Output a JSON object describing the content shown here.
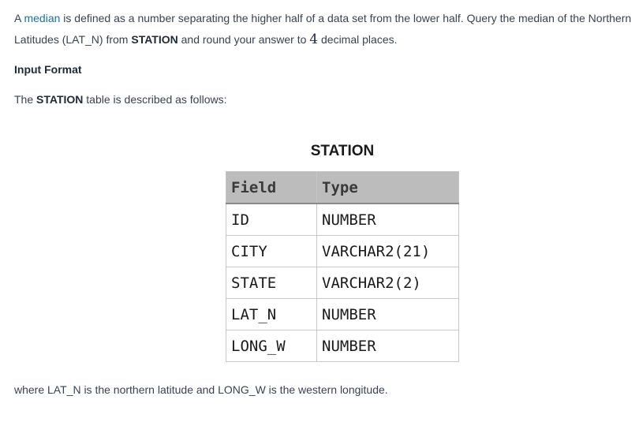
{
  "intro": {
    "prefix": "A ",
    "link_text": "median",
    "text_a": " is defined as a number separating the higher half of a data set from the lower half. Query the median of the Northern Latitudes (LAT_N) from ",
    "table_name": "STATION",
    "text_b": " and round your answer to ",
    "decimal_count": "4",
    "text_c": " decimal places."
  },
  "input_format": {
    "heading": "Input Format",
    "desc_prefix": "The ",
    "desc_table": "STATION",
    "desc_suffix": " table is described as follows:"
  },
  "station_table": {
    "title": "STATION",
    "headers": [
      "Field",
      "Type"
    ],
    "rows": [
      [
        "ID",
        "NUMBER"
      ],
      [
        "CITY",
        "VARCHAR2(21)"
      ],
      [
        "STATE",
        "VARCHAR2(2)"
      ],
      [
        "LAT_N",
        "NUMBER"
      ],
      [
        "LONG_W",
        "NUMBER"
      ]
    ]
  },
  "footer_note": "where LAT_N is the northern latitude and LONG_W is the western longitude."
}
